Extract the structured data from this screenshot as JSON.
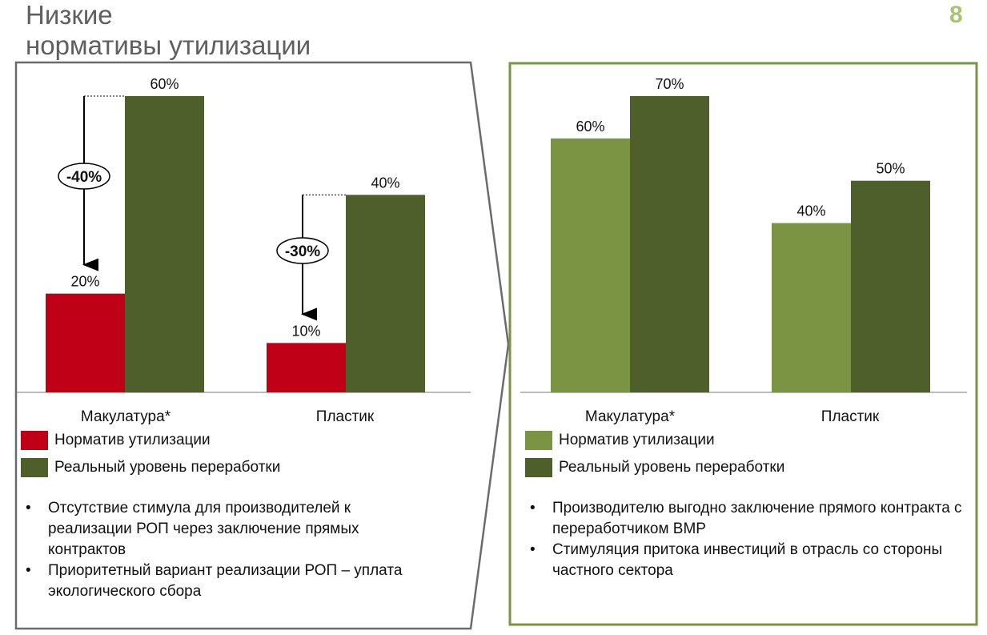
{
  "title": {
    "line1": "Низкие",
    "line2": "нормативы утилизации"
  },
  "page_number": "8",
  "colors": {
    "red": "#c00016",
    "dark_green": "#4f5f2c",
    "light_green": "#7b9443",
    "border_green": "#7b9443",
    "border_gray": "#6b6b6b"
  },
  "chart_data": [
    {
      "type": "bar",
      "categories": [
        "Макулатура*",
        "Пластик"
      ],
      "ylim": [
        0,
        60
      ],
      "series": [
        {
          "name": "Норматив утилизации",
          "values": [
            20,
            10
          ],
          "labels": [
            "20%",
            "10%"
          ]
        },
        {
          "name": "Реальный уровень переработки",
          "values": [
            60,
            40
          ],
          "labels": [
            "60%",
            "40%"
          ]
        }
      ],
      "annotations": [
        "-40%",
        "-30%"
      ]
    },
    {
      "type": "bar",
      "categories": [
        "Макулатура*",
        "Пластик"
      ],
      "ylim": [
        0,
        70
      ],
      "series": [
        {
          "name": "Норматив утилизации",
          "values": [
            60,
            40
          ],
          "labels": [
            "60%",
            "40%"
          ]
        },
        {
          "name": "Реальный уровень переработки",
          "values": [
            70,
            50
          ],
          "labels": [
            "70%",
            "50%"
          ]
        }
      ]
    }
  ],
  "left_bullets": [
    "Отсутствие стимула для производителей к реализации РОП через заключение прямых контрактов",
    "Приоритетный вариант реализации РОП – уплата экологического сбора"
  ],
  "right_bullets": [
    "Производителю выгодно заключение прямого контракта с переработчиком ВМР",
    "Стимуляция притока инвестиций в отрасль со стороны частного сектора"
  ]
}
